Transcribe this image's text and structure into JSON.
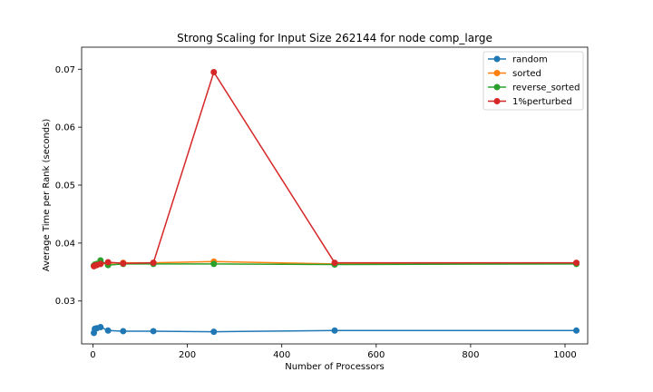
{
  "chart_data": {
    "type": "line",
    "title": "Strong Scaling for Input Size 262144 for node comp_large",
    "xlabel": "Number of Processors",
    "ylabel": "Average Time per Rank (seconds)",
    "xlim": [
      -24,
      1048
    ],
    "ylim": [
      0.0226,
      0.0738
    ],
    "xticks": [
      0,
      200,
      400,
      600,
      800,
      1000
    ],
    "yticks": [
      0.03,
      0.04,
      0.05,
      0.06,
      0.07
    ],
    "grid": false,
    "legend_position": "top-right",
    "x": [
      2,
      4,
      8,
      16,
      32,
      64,
      128,
      256,
      512,
      1024
    ],
    "series": [
      {
        "name": "random",
        "color": "#1f77b4",
        "values": [
          0.0245,
          0.0252,
          0.0253,
          0.0255,
          0.0249,
          0.0248,
          0.0248,
          0.0247,
          0.0249,
          0.0249
        ]
      },
      {
        "name": "sorted",
        "color": "#ff7f0e",
        "values": [
          0.0361,
          0.0362,
          0.0363,
          0.0364,
          0.0365,
          0.0366,
          0.0366,
          0.0368,
          0.0364,
          0.0365
        ]
      },
      {
        "name": "reverse_sorted",
        "color": "#2ca02c",
        "values": [
          0.0361,
          0.0363,
          0.0364,
          0.037,
          0.0362,
          0.0364,
          0.0364,
          0.0364,
          0.0363,
          0.0364
        ]
      },
      {
        "name": "1%perturbed",
        "color": "#d62728",
        "values": [
          0.036,
          0.0361,
          0.0362,
          0.0364,
          0.0367,
          0.0365,
          0.0366,
          0.0695,
          0.0366,
          0.0366
        ]
      }
    ]
  }
}
